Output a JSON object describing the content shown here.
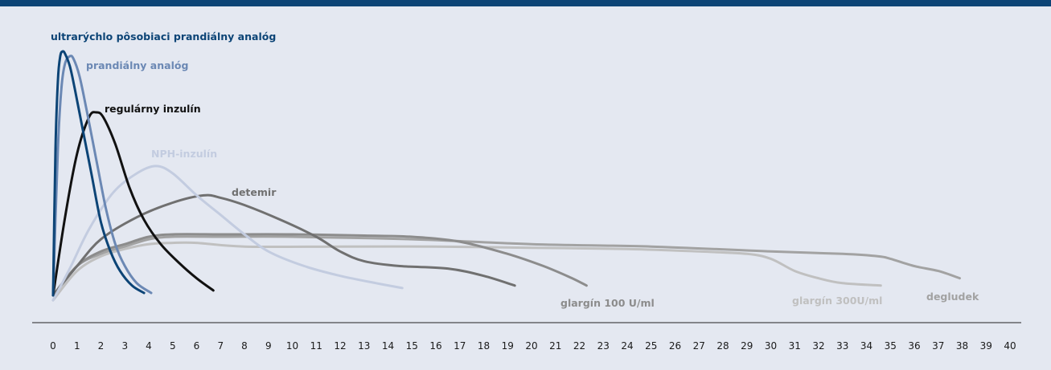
{
  "chart_data": {
    "type": "line",
    "title": "",
    "xlabel": "",
    "ylabel": "",
    "xlim": [
      0,
      40
    ],
    "grid": false,
    "legend": "labels next to curves",
    "x_ticks": [
      "0",
      "1",
      "2",
      "3",
      "4",
      "5",
      "6",
      "7",
      "8",
      "9",
      "10",
      "11",
      "12",
      "13",
      "14",
      "15",
      "16",
      "17",
      "18",
      "19",
      "20",
      "21",
      "22",
      "23",
      "24",
      "25",
      "26",
      "27",
      "28",
      "29",
      "30",
      "31",
      "32",
      "33",
      "34",
      "35",
      "36",
      "37",
      "38",
      "39",
      "40"
    ],
    "series": [
      {
        "name": "ultrarýchlo pôsobiaci prandiálny analóg",
        "color": "#0c4476",
        "points": [
          [
            0,
            0
          ],
          [
            0.1,
            0.6
          ],
          [
            0.2,
            0.88
          ],
          [
            0.3,
            0.98
          ],
          [
            0.4,
            1.0
          ],
          [
            0.5,
            0.99
          ],
          [
            0.7,
            0.94
          ],
          [
            0.9,
            0.85
          ],
          [
            1.2,
            0.7
          ],
          [
            1.6,
            0.5
          ],
          [
            2.0,
            0.3
          ],
          [
            2.4,
            0.18
          ],
          [
            2.8,
            0.1
          ],
          [
            3.3,
            0.04
          ],
          [
            3.8,
            0.01
          ]
        ]
      },
      {
        "name": "prandiálny analóg",
        "color": "#6b88b4",
        "points": [
          [
            0,
            0
          ],
          [
            0.2,
            0.6
          ],
          [
            0.35,
            0.85
          ],
          [
            0.5,
            0.95
          ],
          [
            0.7,
            0.98
          ],
          [
            0.85,
            0.97
          ],
          [
            1.1,
            0.9
          ],
          [
            1.4,
            0.76
          ],
          [
            1.8,
            0.56
          ],
          [
            2.2,
            0.36
          ],
          [
            2.6,
            0.21
          ],
          [
            3.0,
            0.12
          ],
          [
            3.5,
            0.05
          ],
          [
            4.1,
            0.01
          ]
        ]
      },
      {
        "name": "regulárny inzulín",
        "color": "#111111",
        "points": [
          [
            0,
            0
          ],
          [
            0.5,
            0.32
          ],
          [
            1.0,
            0.58
          ],
          [
            1.5,
            0.73
          ],
          [
            1.8,
            0.75
          ],
          [
            2.1,
            0.73
          ],
          [
            2.6,
            0.62
          ],
          [
            3.2,
            0.44
          ],
          [
            3.8,
            0.31
          ],
          [
            4.5,
            0.21
          ],
          [
            5.3,
            0.13
          ],
          [
            6.0,
            0.07
          ],
          [
            6.7,
            0.02
          ]
        ]
      },
      {
        "name": "NPH-inzulín",
        "color": "#c3cce0",
        "points": [
          [
            0,
            -0.02
          ],
          [
            0.7,
            0.11
          ],
          [
            1.5,
            0.27
          ],
          [
            2.5,
            0.42
          ],
          [
            3.5,
            0.5
          ],
          [
            4.3,
            0.53
          ],
          [
            5.0,
            0.5
          ],
          [
            6.0,
            0.41
          ],
          [
            7.0,
            0.33
          ],
          [
            8.0,
            0.25
          ],
          [
            9.0,
            0.18
          ],
          [
            10.5,
            0.12
          ],
          [
            12.0,
            0.08
          ],
          [
            13.5,
            0.05
          ],
          [
            14.6,
            0.03
          ]
        ]
      },
      {
        "name": "detemir",
        "color": "#707070",
        "points": [
          [
            0,
            0
          ],
          [
            1.0,
            0.12
          ],
          [
            2.0,
            0.23
          ],
          [
            3.5,
            0.32
          ],
          [
            5.0,
            0.38
          ],
          [
            6.3,
            0.41
          ],
          [
            7.0,
            0.4
          ],
          [
            8.0,
            0.37
          ],
          [
            9.5,
            0.31
          ],
          [
            11.0,
            0.24
          ],
          [
            12.0,
            0.18
          ],
          [
            13.0,
            0.14
          ],
          [
            14.5,
            0.12
          ],
          [
            16.5,
            0.11
          ],
          [
            18.0,
            0.08
          ],
          [
            19.3,
            0.04
          ]
        ]
      },
      {
        "name": "glargín 100 U/ml",
        "color": "#8c8c8c",
        "points": [
          [
            0,
            0
          ],
          [
            1.0,
            0.12
          ],
          [
            2.0,
            0.18
          ],
          [
            3.0,
            0.21
          ],
          [
            4.0,
            0.24
          ],
          [
            5.0,
            0.25
          ],
          [
            7.0,
            0.25
          ],
          [
            10.0,
            0.25
          ],
          [
            13.0,
            0.245
          ],
          [
            15.0,
            0.24
          ],
          [
            17.0,
            0.22
          ],
          [
            19.0,
            0.17
          ],
          [
            20.5,
            0.12
          ],
          [
            21.7,
            0.07
          ],
          [
            22.3,
            0.04
          ]
        ]
      },
      {
        "name": "glargín 300U/ml",
        "color": "#c0c0c0",
        "points": [
          [
            0,
            -0.02
          ],
          [
            1.0,
            0.1
          ],
          [
            2.0,
            0.16
          ],
          [
            3.0,
            0.19
          ],
          [
            4.0,
            0.21
          ],
          [
            5.0,
            0.215
          ],
          [
            6.0,
            0.215
          ],
          [
            8.0,
            0.2
          ],
          [
            12.0,
            0.2
          ],
          [
            16.0,
            0.2
          ],
          [
            20.0,
            0.195
          ],
          [
            24.0,
            0.19
          ],
          [
            27.0,
            0.18
          ],
          [
            29.0,
            0.17
          ],
          [
            30.0,
            0.15
          ],
          [
            31.0,
            0.1
          ],
          [
            32.0,
            0.07
          ],
          [
            33.0,
            0.05
          ],
          [
            34.6,
            0.04
          ]
        ]
      },
      {
        "name": "degludek",
        "color": "#a2a2a2",
        "points": [
          [
            0,
            0
          ],
          [
            1.0,
            0.12
          ],
          [
            2.0,
            0.17
          ],
          [
            3.0,
            0.2
          ],
          [
            4.0,
            0.23
          ],
          [
            5.0,
            0.24
          ],
          [
            7.0,
            0.24
          ],
          [
            10.0,
            0.24
          ],
          [
            15.0,
            0.23
          ],
          [
            20.0,
            0.21
          ],
          [
            25.0,
            0.2
          ],
          [
            30.0,
            0.18
          ],
          [
            33.0,
            0.17
          ],
          [
            34.5,
            0.16
          ],
          [
            35.0,
            0.15
          ],
          [
            36.0,
            0.12
          ],
          [
            37.0,
            0.1
          ],
          [
            37.9,
            0.07
          ]
        ]
      }
    ]
  }
}
